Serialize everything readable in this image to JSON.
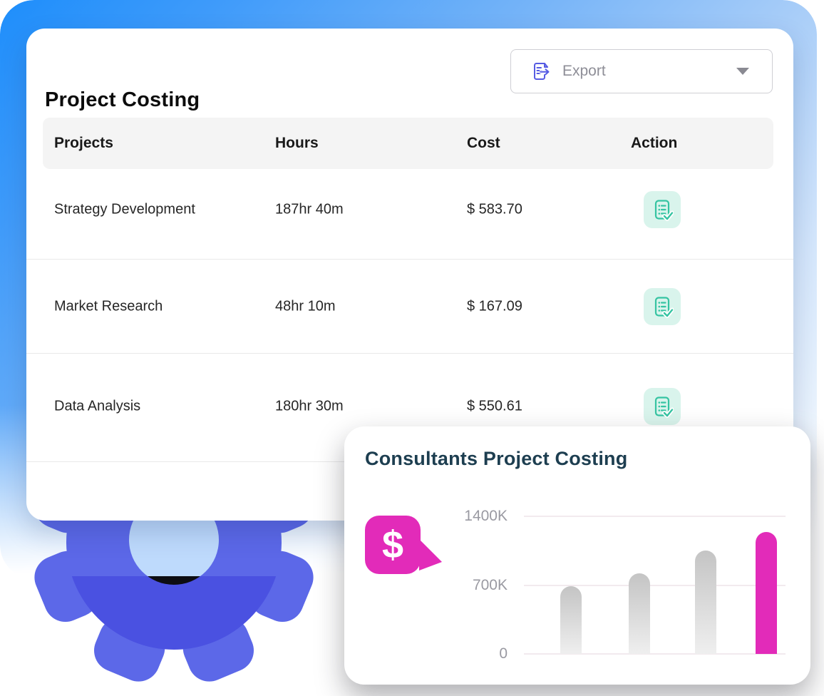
{
  "main_card": {
    "title": "Project Costing",
    "export_button": {
      "label": "Export"
    },
    "table": {
      "headers": [
        "Projects",
        "Hours",
        "Cost",
        "Action"
      ],
      "rows": [
        {
          "project": "Strategy Development",
          "hours": "187hr 40m",
          "cost": "$ 583.70"
        },
        {
          "project": "Market Research",
          "hours": "48hr 10m",
          "cost": "$ 167.09"
        },
        {
          "project": "Data Analysis",
          "hours": "180hr 30m",
          "cost": "$ 550.61"
        }
      ]
    }
  },
  "chart_card": {
    "title": "Consultants Project Costing",
    "badge_symbol": "$"
  },
  "chart_data": {
    "type": "bar",
    "title": "Consultants Project Costing",
    "categories": [
      "",
      "",
      "",
      ""
    ],
    "values": [
      690,
      820,
      1050,
      1240
    ],
    "unit": "K",
    "ylim": [
      0,
      1400
    ],
    "yticks": [
      "1400K",
      "700K",
      "0"
    ],
    "grid": "horizontal",
    "legend": "none",
    "highlight_index": 3,
    "bar_color_default": "#c9c9c9",
    "bar_color_highlight": "#e22bb9"
  },
  "colors": {
    "accent_pink": "#e22bb9",
    "accent_teal": "#35c4a2",
    "accent_indigo": "#565be3",
    "gear_blue": "#4b51e0",
    "background_blue": "#1e8efb",
    "chart_title_navy": "#1d3e50"
  }
}
